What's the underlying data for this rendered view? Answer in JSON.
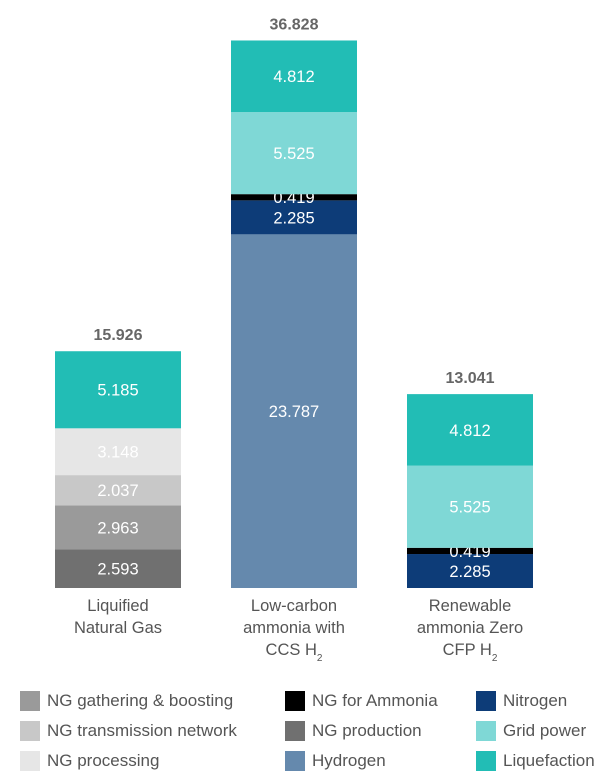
{
  "chart_data": {
    "type": "bar",
    "stacked": true,
    "categories": [
      {
        "lines": [
          "Liquified",
          "Natural Gas"
        ]
      },
      {
        "lines": [
          "Low-carbon",
          "ammonia with",
          "CCS H|2"
        ]
      },
      {
        "lines": [
          "Renewable",
          "ammonia Zero",
          "CFP H|2"
        ]
      }
    ],
    "totals": [
      "15.926",
      "36.828",
      "13.041"
    ],
    "series": [
      {
        "name": "NG production",
        "color": "#707070",
        "label_color": "#ffffff",
        "values": [
          2.593,
          null,
          null
        ],
        "labels": [
          "2.593",
          "",
          ""
        ]
      },
      {
        "name": "NG gathering & boosting",
        "color": "#9a9a9a",
        "label_color": "#ffffff",
        "values": [
          2.963,
          null,
          null
        ],
        "labels": [
          "2.963",
          "",
          ""
        ]
      },
      {
        "name": "NG transmission network",
        "color": "#c8c8c8",
        "label_color": "#ffffff",
        "values": [
          2.037,
          null,
          null
        ],
        "labels": [
          "2.037",
          "",
          ""
        ]
      },
      {
        "name": "NG processing",
        "color": "#e6e6e6",
        "label_color": "#ffffff",
        "values": [
          3.148,
          null,
          null
        ],
        "labels": [
          "3.148",
          "",
          ""
        ]
      },
      {
        "name": "Hydrogen",
        "color": "#6589ad",
        "label_color": "#ffffff",
        "values": [
          null,
          23.787,
          null
        ],
        "labels": [
          "",
          "23.787",
          ""
        ]
      },
      {
        "name": "Nitrogen",
        "color": "#0d3c78",
        "label_color": "#ffffff",
        "values": [
          null,
          2.285,
          2.285
        ],
        "labels": [
          "",
          "2.285",
          "2.285"
        ]
      },
      {
        "name": "NG for Ammonia",
        "color": "#000000",
        "label_color": "#ffffff",
        "values": [
          null,
          0.419,
          0.419
        ],
        "labels": [
          "",
          "0.419",
          "0.419"
        ]
      },
      {
        "name": "Grid power",
        "color": "#7fd8d6",
        "label_color": "#ffffff",
        "values": [
          null,
          5.525,
          5.525
        ],
        "labels": [
          "",
          "5.525",
          "5.525"
        ]
      },
      {
        "name": "Liquefaction",
        "color": "#22bdb5",
        "label_color": "#ffffff",
        "values": [
          5.185,
          4.812,
          4.812
        ],
        "labels": [
          "5.185",
          "4.812",
          "4.812"
        ]
      }
    ],
    "legend": {
      "placement": "bottom",
      "order": [
        "NG gathering & boosting",
        "NG for Ammonia",
        "Nitrogen",
        "NG transmission network",
        "NG production",
        "Grid power",
        "NG processing",
        "Hydrogen",
        "Liquefaction"
      ]
    },
    "colors": {
      "total_label": "#666666",
      "category_label": "#555555"
    }
  }
}
